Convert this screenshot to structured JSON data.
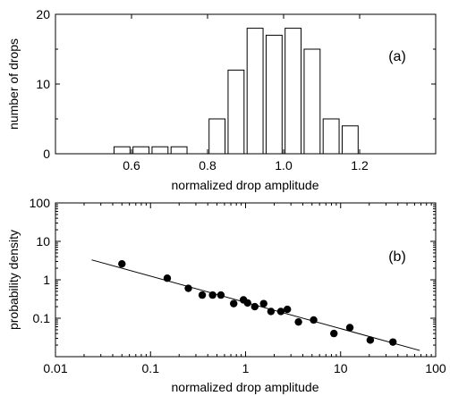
{
  "chart_data": [
    {
      "type": "bar",
      "panel_label": "(a)",
      "xlabel": "normalized drop amplitude",
      "ylabel": "number of drops",
      "xlim": [
        0.4,
        1.4
      ],
      "ylim": [
        0,
        20
      ],
      "x_ticks": [
        0.6,
        0.8,
        1.0,
        1.2
      ],
      "x_tick_labels": [
        "0.6",
        "0.8",
        "1.0",
        "1.2"
      ],
      "y_ticks": [
        0,
        10,
        20
      ],
      "y_tick_labels": [
        "0",
        "10",
        "20"
      ],
      "bin_width": 0.05,
      "bins": [
        {
          "x": 0.575,
          "count": 1
        },
        {
          "x": 0.625,
          "count": 1
        },
        {
          "x": 0.675,
          "count": 1
        },
        {
          "x": 0.725,
          "count": 1
        },
        {
          "x": 0.825,
          "count": 5
        },
        {
          "x": 0.875,
          "count": 12
        },
        {
          "x": 0.925,
          "count": 18
        },
        {
          "x": 0.975,
          "count": 17
        },
        {
          "x": 1.025,
          "count": 18
        },
        {
          "x": 1.075,
          "count": 15
        },
        {
          "x": 1.125,
          "count": 5
        },
        {
          "x": 1.175,
          "count": 4
        }
      ]
    },
    {
      "type": "scatter",
      "panel_label": "(b)",
      "xlabel": "normalized drop amplitude",
      "ylabel": "probability density",
      "xscale": "log",
      "yscale": "log",
      "xlim": [
        0.01,
        100
      ],
      "ylim": [
        0.01,
        100
      ],
      "x_ticks": [
        0.01,
        0.1,
        1,
        10,
        100
      ],
      "x_tick_labels": [
        "0.01",
        "0.1",
        "1",
        "10",
        "100"
      ],
      "y_ticks": [
        0.1,
        1,
        10,
        100
      ],
      "y_tick_labels": [
        "0.1",
        "1",
        "10",
        "100"
      ],
      "points": [
        {
          "x": 0.05,
          "y": 2.6
        },
        {
          "x": 0.15,
          "y": 1.1
        },
        {
          "x": 0.25,
          "y": 0.6
        },
        {
          "x": 0.35,
          "y": 0.4
        },
        {
          "x": 0.45,
          "y": 0.4
        },
        {
          "x": 0.55,
          "y": 0.4
        },
        {
          "x": 0.75,
          "y": 0.24
        },
        {
          "x": 0.95,
          "y": 0.3
        },
        {
          "x": 1.05,
          "y": 0.25
        },
        {
          "x": 1.25,
          "y": 0.2
        },
        {
          "x": 1.55,
          "y": 0.24
        },
        {
          "x": 1.85,
          "y": 0.15
        },
        {
          "x": 2.35,
          "y": 0.15
        },
        {
          "x": 2.75,
          "y": 0.17
        },
        {
          "x": 3.6,
          "y": 0.08
        },
        {
          "x": 5.2,
          "y": 0.09
        },
        {
          "x": 8.5,
          "y": 0.04
        },
        {
          "x": 12.5,
          "y": 0.057
        },
        {
          "x": 20.5,
          "y": 0.027
        },
        {
          "x": 35.5,
          "y": 0.024
        }
      ],
      "fit_line": [
        {
          "x": 0.024,
          "y": 3.3
        },
        {
          "x": 68,
          "y": 0.0145
        }
      ]
    }
  ]
}
